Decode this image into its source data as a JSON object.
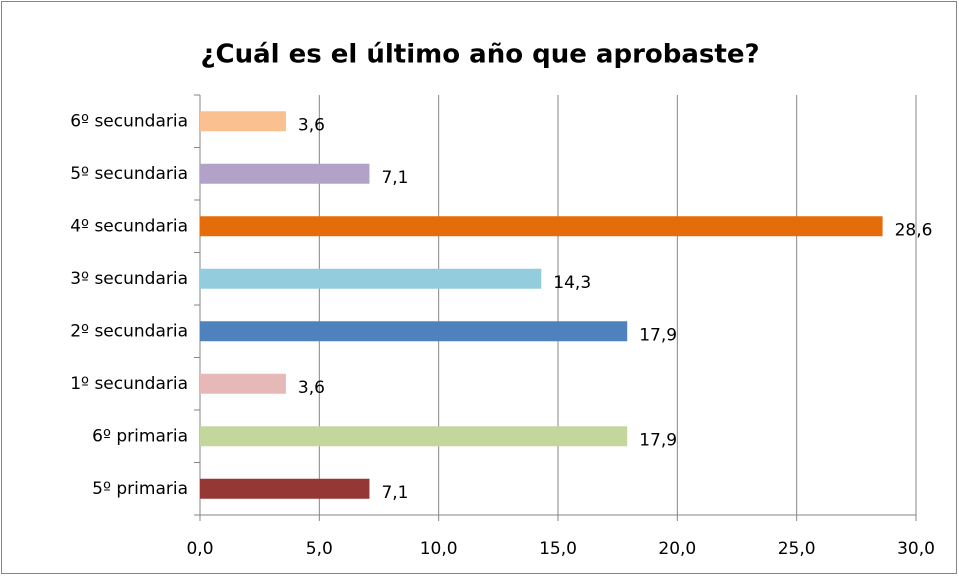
{
  "chart_data": {
    "type": "bar",
    "orientation": "horizontal",
    "title": "¿Cuál es el último año que aprobaste?",
    "categories": [
      "6º secundaria",
      "5º secundaria",
      "4º secundaria",
      "3º secundaria",
      "2º secundaria",
      "1º secundaria",
      "6º primaria",
      "5º primaria"
    ],
    "values": [
      3.6,
      7.1,
      28.6,
      14.3,
      17.9,
      3.6,
      17.9,
      7.1
    ],
    "value_labels": [
      "3,6",
      "7,1",
      "28,6",
      "14,3",
      "17,9",
      "3,6",
      "17,9",
      "7,1"
    ],
    "colors": [
      "#fac090",
      "#b3a2c7",
      "#e46c0a",
      "#93cddd",
      "#4f81bd",
      "#e6b9b8",
      "#c3d69b",
      "#953735"
    ],
    "xlim": [
      0,
      30
    ],
    "xticks": [
      {
        "value": 0,
        "label": "0,0"
      },
      {
        "value": 5,
        "label": "5,0"
      },
      {
        "value": 10,
        "label": "10,0"
      },
      {
        "value": 15,
        "label": "15,0"
      },
      {
        "value": 20,
        "label": "20,0"
      },
      {
        "value": 25,
        "label": "25,0"
      },
      {
        "value": 30,
        "label": "30,0"
      }
    ],
    "grid": true
  }
}
